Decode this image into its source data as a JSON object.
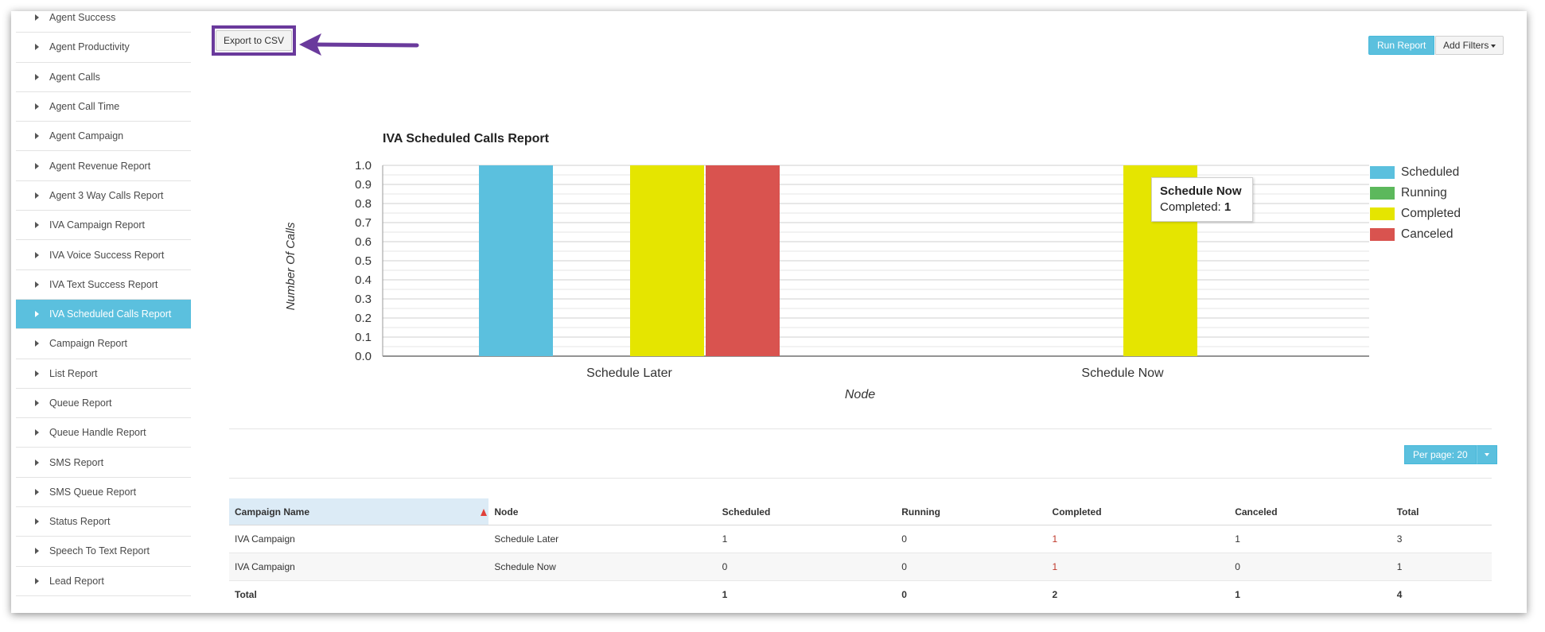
{
  "sidebar": {
    "items": [
      {
        "label": "Agent Success"
      },
      {
        "label": "Agent Productivity"
      },
      {
        "label": "Agent Calls"
      },
      {
        "label": "Agent Call Time"
      },
      {
        "label": "Agent Campaign"
      },
      {
        "label": "Agent Revenue Report"
      },
      {
        "label": "Agent 3 Way Calls Report"
      },
      {
        "label": "IVA Campaign Report"
      },
      {
        "label": "IVA Voice Success Report"
      },
      {
        "label": "IVA Text Success Report"
      },
      {
        "label": "IVA Scheduled Calls Report",
        "active": true
      },
      {
        "label": "Campaign Report"
      },
      {
        "label": "List Report"
      },
      {
        "label": "Queue Report"
      },
      {
        "label": "Queue Handle Report"
      },
      {
        "label": "SMS Report"
      },
      {
        "label": "SMS Queue Report"
      },
      {
        "label": "Status Report"
      },
      {
        "label": "Speech To Text Report"
      },
      {
        "label": "Lead Report"
      }
    ]
  },
  "toolbar": {
    "export_label": "Export to CSV",
    "run_label": "Run Report",
    "filters_label": "Add Filters"
  },
  "colors": {
    "accent": "#5bc0de",
    "highlight_box": "#6a3a9c",
    "scheduled": "#5bc0de",
    "running": "#5cb85c",
    "completed": "#e5e500",
    "canceled": "#d9534f"
  },
  "chart_data": {
    "type": "bar",
    "title": "IVA Scheduled Calls Report",
    "xlabel": "Node",
    "ylabel": "Number Of Calls",
    "categories": [
      "Schedule Later",
      "Schedule Now"
    ],
    "series": [
      {
        "name": "Scheduled",
        "values": [
          1,
          0
        ],
        "color": "#5bc0de"
      },
      {
        "name": "Running",
        "values": [
          0,
          0
        ],
        "color": "#5cb85c"
      },
      {
        "name": "Completed",
        "values": [
          1,
          1
        ],
        "color": "#e5e500"
      },
      {
        "name": "Canceled",
        "values": [
          1,
          0
        ],
        "color": "#d9534f"
      }
    ],
    "ylim": [
      0,
      1.0
    ],
    "yticks": [
      "0.0",
      "0.1",
      "0.2",
      "0.3",
      "0.4",
      "0.5",
      "0.6",
      "0.7",
      "0.8",
      "0.9",
      "1.0"
    ],
    "grid": true,
    "legend": "right"
  },
  "tooltip": {
    "title": "Schedule Now",
    "label": "Completed:",
    "value": "1"
  },
  "pagination": {
    "per_page_label": "Per page: 20"
  },
  "table": {
    "headers": [
      "Campaign Name",
      "Node",
      "Scheduled",
      "Running",
      "Completed",
      "Canceled",
      "Total"
    ],
    "rows": [
      [
        "IVA Campaign",
        "Schedule Later",
        "1",
        "0",
        "1",
        "1",
        "3"
      ],
      [
        "IVA Campaign",
        "Schedule Now",
        "0",
        "0",
        "1",
        "0",
        "1"
      ]
    ],
    "total_row": [
      "Total",
      "",
      "1",
      "0",
      "2",
      "1",
      "4"
    ]
  }
}
